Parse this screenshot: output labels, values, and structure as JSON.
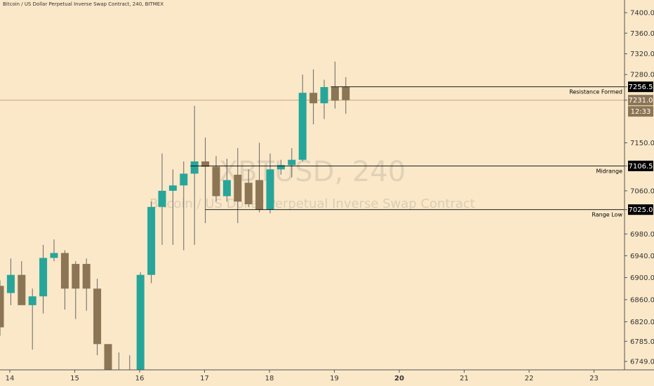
{
  "header": {
    "title": "Bitcoin / US Dollar Perpetual Inverse Swap Contract, 240, BITMEX"
  },
  "watermark": {
    "symbol": "XBTUSD, 240",
    "description": "Bitcoin / US Dollar Perpetual Inverse Swap Contract"
  },
  "colors": {
    "background": "#fae8c9",
    "up": "#26a69a",
    "down": "#8c7555",
    "wick": "#666666",
    "level_line": "#000000",
    "price_line": "#c9a67a"
  },
  "chart_data": {
    "type": "candlestick",
    "y_scale": "log",
    "ylim": [
      6730,
      7430
    ],
    "y_ticks": [
      "6749.0",
      "6785.0",
      "6820.0",
      "6860.0",
      "6900.0",
      "6940.0",
      "6980.0",
      "7025.0",
      "7060.0",
      "7106.5",
      "7150.0",
      "7231.0",
      "7256.5",
      "7280.0",
      "7320.0",
      "7360.0",
      "7400.0"
    ],
    "x_labels": [
      "14",
      "15",
      "16",
      "17",
      "18",
      "19",
      "20",
      "21",
      "22",
      "23"
    ],
    "candles": [
      {
        "o": 6885,
        "h": 6895,
        "l": 6795,
        "c": 6810
      },
      {
        "o": 6872,
        "h": 6935,
        "l": 6850,
        "c": 6905
      },
      {
        "o": 6905,
        "h": 6930,
        "l": 6855,
        "c": 6850
      },
      {
        "o": 6850,
        "h": 6880,
        "l": 6770,
        "c": 6866
      },
      {
        "o": 6866,
        "h": 6960,
        "l": 6835,
        "c": 6936
      },
      {
        "o": 6936,
        "h": 6970,
        "l": 6930,
        "c": 6945
      },
      {
        "o": 6945,
        "h": 6950,
        "l": 6842,
        "c": 6880
      },
      {
        "o": 6925,
        "h": 6930,
        "l": 6825,
        "c": 6880
      },
      {
        "o": 6925,
        "h": 6935,
        "l": 6840,
        "c": 6880
      },
      {
        "o": 6880,
        "h": 6898,
        "l": 6760,
        "c": 6780
      },
      {
        "o": 6780,
        "h": 6780,
        "l": 6700,
        "c": 6700
      },
      {
        "o": 6700,
        "h": 6765,
        "l": 6700,
        "c": 6700
      },
      {
        "o": 6700,
        "h": 6760,
        "l": 6700,
        "c": 6700
      },
      {
        "o": 6700,
        "h": 6910,
        "l": 6700,
        "c": 6905
      },
      {
        "o": 6905,
        "h": 7040,
        "l": 6890,
        "c": 7030
      },
      {
        "o": 7030,
        "h": 7130,
        "l": 6960,
        "c": 7060
      },
      {
        "o": 7060,
        "h": 7100,
        "l": 6960,
        "c": 7070
      },
      {
        "o": 7070,
        "h": 7115,
        "l": 6950,
        "c": 7092
      },
      {
        "o": 7092,
        "h": 7220,
        "l": 6960,
        "c": 7115
      },
      {
        "o": 7115,
        "h": 7160,
        "l": 7000,
        "c": 7105
      },
      {
        "o": 7105,
        "h": 7125,
        "l": 7040,
        "c": 7050
      },
      {
        "o": 7050,
        "h": 7120,
        "l": 7040,
        "c": 7080
      },
      {
        "o": 7090,
        "h": 7140,
        "l": 7000,
        "c": 7040
      },
      {
        "o": 7075,
        "h": 7100,
        "l": 7030,
        "c": 7035
      },
      {
        "o": 7080,
        "h": 7150,
        "l": 7020,
        "c": 7025
      },
      {
        "o": 7025,
        "h": 7130,
        "l": 7018,
        "c": 7100
      },
      {
        "o": 7100,
        "h": 7118,
        "l": 7090,
        "c": 7108
      },
      {
        "o": 7108,
        "h": 7140,
        "l": 7085,
        "c": 7118
      },
      {
        "o": 7118,
        "h": 7280,
        "l": 7115,
        "c": 7245
      },
      {
        "o": 7245,
        "h": 7290,
        "l": 7185,
        "c": 7225
      },
      {
        "o": 7225,
        "h": 7270,
        "l": 7195,
        "c": 7256
      },
      {
        "o": 7256,
        "h": 7305,
        "l": 7215,
        "c": 7230
      },
      {
        "o": 7256,
        "h": 7275,
        "l": 7205,
        "c": 7231
      }
    ],
    "levels": [
      {
        "label": "Resistance Formed",
        "value": "7256.5",
        "price": 7256.5
      },
      {
        "label": "Midrange",
        "value": "7106.5",
        "price": 7106.5
      },
      {
        "label": "Range  Low",
        "value": "7025.0",
        "price": 7025.0
      }
    ],
    "current_price": {
      "value": "7231.0",
      "price": 7231.0,
      "countdown": "12:33"
    }
  }
}
